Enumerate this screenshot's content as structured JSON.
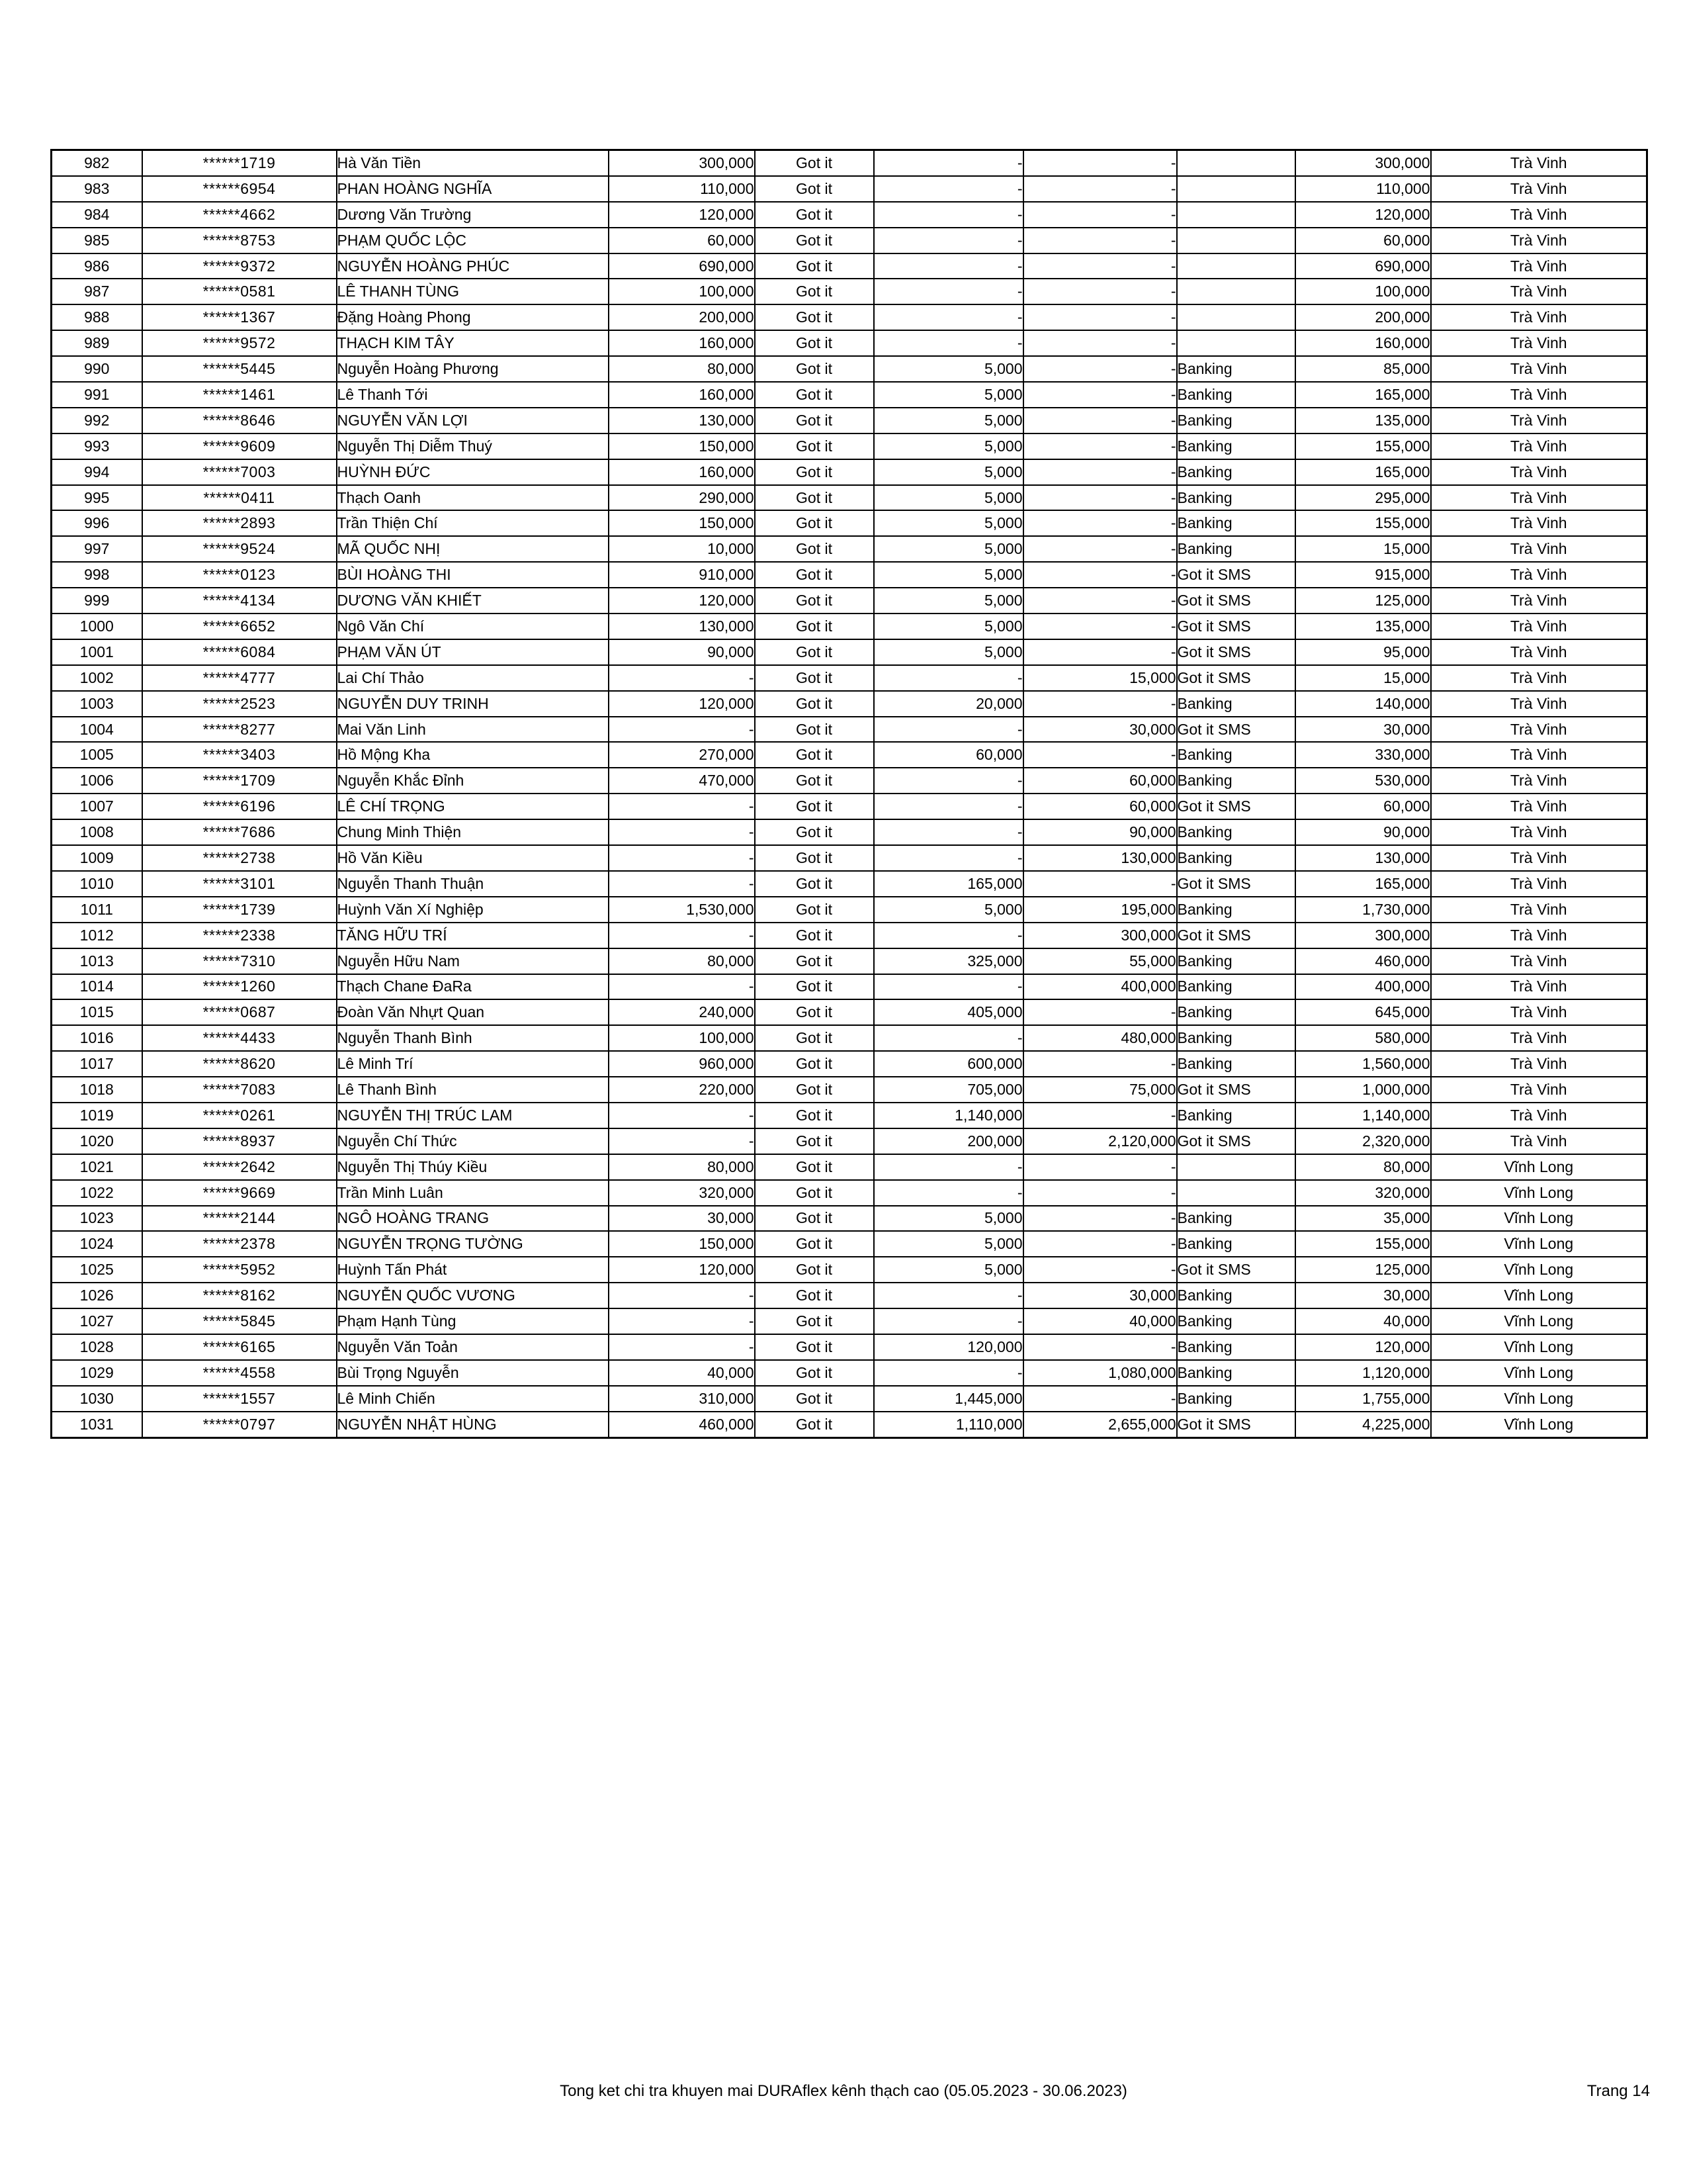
{
  "footer": {
    "summary": "Tong ket chi tra khuyen mai DURAflex kênh thạch cao (05.05.2023 - 30.06.2023)",
    "page_number": "Trang 14"
  },
  "table": {
    "rows": [
      [
        "982",
        "******1719",
        "Hà Văn Tiền",
        "300,000",
        "Got it",
        "-",
        "-",
        "",
        "300,000",
        "Trà Vinh"
      ],
      [
        "983",
        "******6954",
        "PHAN HOÀNG NGHĨA",
        "110,000",
        "Got it",
        "-",
        "-",
        "",
        "110,000",
        "Trà Vinh"
      ],
      [
        "984",
        "******4662",
        "Dương Văn Trường",
        "120,000",
        "Got it",
        "-",
        "-",
        "",
        "120,000",
        "Trà Vinh"
      ],
      [
        "985",
        "******8753",
        "PHẠM QUỐC LỘC",
        "60,000",
        "Got it",
        "-",
        "-",
        "",
        "60,000",
        "Trà Vinh"
      ],
      [
        "986",
        "******9372",
        "NGUYỄN HOÀNG PHÚC",
        "690,000",
        "Got it",
        "-",
        "-",
        "",
        "690,000",
        "Trà Vinh"
      ],
      [
        "987",
        "******0581",
        "LÊ THANH TÙNG",
        "100,000",
        "Got it",
        "-",
        "-",
        "",
        "100,000",
        "Trà Vinh"
      ],
      [
        "988",
        "******1367",
        "Đặng Hoàng Phong",
        "200,000",
        "Got it",
        "-",
        "-",
        "",
        "200,000",
        "Trà Vinh"
      ],
      [
        "989",
        "******9572",
        "THẠCH KIM TÂY",
        "160,000",
        "Got it",
        "-",
        "-",
        "",
        "160,000",
        "Trà Vinh"
      ],
      [
        "990",
        "******5445",
        "Nguyễn Hoàng Phương",
        "80,000",
        "Got it",
        "5,000",
        "-",
        "Banking",
        "85,000",
        "Trà Vinh"
      ],
      [
        "991",
        "******1461",
        "Lê Thanh Tới",
        "160,000",
        "Got it",
        "5,000",
        "-",
        "Banking",
        "165,000",
        "Trà Vinh"
      ],
      [
        "992",
        "******8646",
        "NGUYỄN VĂN LỢI",
        "130,000",
        "Got it",
        "5,000",
        "-",
        "Banking",
        "135,000",
        "Trà Vinh"
      ],
      [
        "993",
        "******9609",
        "Nguyễn Thị Diễm Thuý",
        "150,000",
        "Got it",
        "5,000",
        "-",
        "Banking",
        "155,000",
        "Trà Vinh"
      ],
      [
        "994",
        "******7003",
        "HUỲNH ĐỨC",
        "160,000",
        "Got it",
        "5,000",
        "-",
        "Banking",
        "165,000",
        "Trà Vinh"
      ],
      [
        "995",
        "******0411",
        "Thạch Oanh",
        "290,000",
        "Got it",
        "5,000",
        "-",
        "Banking",
        "295,000",
        "Trà Vinh"
      ],
      [
        "996",
        "******2893",
        "Trần Thiện Chí",
        "150,000",
        "Got it",
        "5,000",
        "-",
        "Banking",
        "155,000",
        "Trà Vinh"
      ],
      [
        "997",
        "******9524",
        "MÃ QUỐC NHỊ",
        "10,000",
        "Got it",
        "5,000",
        "-",
        "Banking",
        "15,000",
        "Trà Vinh"
      ],
      [
        "998",
        "******0123",
        "BÙI HOÀNG THI",
        "910,000",
        "Got it",
        "5,000",
        "-",
        "Got it SMS",
        "915,000",
        "Trà Vinh"
      ],
      [
        "999",
        "******4134",
        "DƯƠNG VĂN KHIẾT",
        "120,000",
        "Got it",
        "5,000",
        "-",
        "Got it SMS",
        "125,000",
        "Trà Vinh"
      ],
      [
        "1000",
        "******6652",
        "Ngô Văn Chí",
        "130,000",
        "Got it",
        "5,000",
        "-",
        "Got it SMS",
        "135,000",
        "Trà Vinh"
      ],
      [
        "1001",
        "******6084",
        "PHẠM VĂN ÚT",
        "90,000",
        "Got it",
        "5,000",
        "-",
        "Got it SMS",
        "95,000",
        "Trà Vinh"
      ],
      [
        "1002",
        "******4777",
        "Lai Chí Thảo",
        "-",
        "Got it",
        "-",
        "15,000",
        "Got it SMS",
        "15,000",
        "Trà Vinh"
      ],
      [
        "1003",
        "******2523",
        "NGUYỄN DUY TRINH",
        "120,000",
        "Got it",
        "20,000",
        "-",
        "Banking",
        "140,000",
        "Trà Vinh"
      ],
      [
        "1004",
        "******8277",
        "Mai Văn Linh",
        "-",
        "Got it",
        "-",
        "30,000",
        "Got it SMS",
        "30,000",
        "Trà Vinh"
      ],
      [
        "1005",
        "******3403",
        "Hồ Mộng Kha",
        "270,000",
        "Got it",
        "60,000",
        "-",
        "Banking",
        "330,000",
        "Trà Vinh"
      ],
      [
        "1006",
        "******1709",
        "Nguyễn Khắc Đỉnh",
        "470,000",
        "Got it",
        "-",
        "60,000",
        "Banking",
        "530,000",
        "Trà Vinh"
      ],
      [
        "1007",
        "******6196",
        "LÊ CHÍ TRỌNG",
        "-",
        "Got it",
        "-",
        "60,000",
        "Got it SMS",
        "60,000",
        "Trà Vinh"
      ],
      [
        "1008",
        "******7686",
        "Chung Minh Thiện",
        "-",
        "Got it",
        "-",
        "90,000",
        "Banking",
        "90,000",
        "Trà Vinh"
      ],
      [
        "1009",
        "******2738",
        "Hồ Văn Kiều",
        "-",
        "Got it",
        "-",
        "130,000",
        "Banking",
        "130,000",
        "Trà Vinh"
      ],
      [
        "1010",
        "******3101",
        "Nguyễn Thanh Thuận",
        "-",
        "Got it",
        "165,000",
        "-",
        "Got it SMS",
        "165,000",
        "Trà Vinh"
      ],
      [
        "1011",
        "******1739",
        "Huỳnh Văn Xí Nghiệp",
        "1,530,000",
        "Got it",
        "5,000",
        "195,000",
        "Banking",
        "1,730,000",
        "Trà Vinh"
      ],
      [
        "1012",
        "******2338",
        "TĂNG HỮU TRÍ",
        "-",
        "Got it",
        "-",
        "300,000",
        "Got it SMS",
        "300,000",
        "Trà Vinh"
      ],
      [
        "1013",
        "******7310",
        "Nguyễn Hữu Nam",
        "80,000",
        "Got it",
        "325,000",
        "55,000",
        "Banking",
        "460,000",
        "Trà Vinh"
      ],
      [
        "1014",
        "******1260",
        "Thạch Chane ĐaRa",
        "-",
        "Got it",
        "-",
        "400,000",
        "Banking",
        "400,000",
        "Trà Vinh"
      ],
      [
        "1015",
        "******0687",
        "Đoàn Văn Nhựt Quan",
        "240,000",
        "Got it",
        "405,000",
        "-",
        "Banking",
        "645,000",
        "Trà Vinh"
      ],
      [
        "1016",
        "******4433",
        "Nguyễn Thanh Bình",
        "100,000",
        "Got it",
        "-",
        "480,000",
        "Banking",
        "580,000",
        "Trà Vinh"
      ],
      [
        "1017",
        "******8620",
        "Lê Minh Trí",
        "960,000",
        "Got it",
        "600,000",
        "-",
        "Banking",
        "1,560,000",
        "Trà Vinh"
      ],
      [
        "1018",
        "******7083",
        "Lê Thanh Bình",
        "220,000",
        "Got it",
        "705,000",
        "75,000",
        "Got it SMS",
        "1,000,000",
        "Trà Vinh"
      ],
      [
        "1019",
        "******0261",
        "NGUYỄN THỊ TRÚC LAM",
        "-",
        "Got it",
        "1,140,000",
        "-",
        "Banking",
        "1,140,000",
        "Trà Vinh"
      ],
      [
        "1020",
        "******8937",
        "Nguyễn Chí Thức",
        "-",
        "Got it",
        "200,000",
        "2,120,000",
        "Got it SMS",
        "2,320,000",
        "Trà Vinh"
      ],
      [
        "1021",
        "******2642",
        "Nguyễn Thị Thúy Kiều",
        "80,000",
        "Got it",
        "-",
        "-",
        "",
        "80,000",
        "Vĩnh Long"
      ],
      [
        "1022",
        "******9669",
        "Trần Minh Luân",
        "320,000",
        "Got it",
        "-",
        "-",
        "",
        "320,000",
        "Vĩnh Long"
      ],
      [
        "1023",
        "******2144",
        "NGÔ HOÀNG TRANG",
        "30,000",
        "Got it",
        "5,000",
        "-",
        "Banking",
        "35,000",
        "Vĩnh Long"
      ],
      [
        "1024",
        "******2378",
        "NGUYỄN TRỌNG TƯỜNG",
        "150,000",
        "Got it",
        "5,000",
        "-",
        "Banking",
        "155,000",
        "Vĩnh Long"
      ],
      [
        "1025",
        "******5952",
        "Huỳnh Tấn Phát",
        "120,000",
        "Got it",
        "5,000",
        "-",
        "Got it SMS",
        "125,000",
        "Vĩnh Long"
      ],
      [
        "1026",
        "******8162",
        "NGUYỄN QUỐC VƯƠNG",
        "-",
        "Got it",
        "-",
        "30,000",
        "Banking",
        "30,000",
        "Vĩnh Long"
      ],
      [
        "1027",
        "******5845",
        "Phạm Hạnh Tùng",
        "-",
        "Got it",
        "-",
        "40,000",
        "Banking",
        "40,000",
        "Vĩnh Long"
      ],
      [
        "1028",
        "******6165",
        "Nguyễn Văn Toản",
        "-",
        "Got it",
        "120,000",
        "-",
        "Banking",
        "120,000",
        "Vĩnh Long"
      ],
      [
        "1029",
        "******4558",
        "Bùi Trọng Nguyễn",
        "40,000",
        "Got it",
        "-",
        "1,080,000",
        "Banking",
        "1,120,000",
        "Vĩnh Long"
      ],
      [
        "1030",
        "******1557",
        "Lê Minh Chiến",
        "310,000",
        "Got it",
        "1,445,000",
        "-",
        "Banking",
        "1,755,000",
        "Vĩnh Long"
      ],
      [
        "1031",
        "******0797",
        "NGUYỄN NHẬT HÙNG",
        "460,000",
        "Got it",
        "1,110,000",
        "2,655,000",
        "Got it SMS",
        "4,225,000",
        "Vĩnh Long"
      ]
    ]
  }
}
